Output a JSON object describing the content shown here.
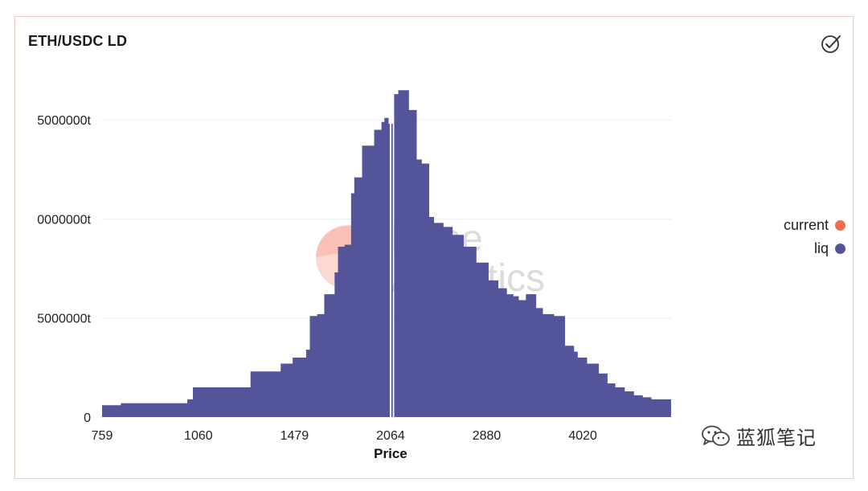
{
  "card": {
    "title": "ETH/USDC LD",
    "check_icon": "check-circle-icon"
  },
  "watermark": {
    "dune_line1": "Dune",
    "dune_line2": "Analytics",
    "wechat_text": "蓝狐笔记",
    "wechat_icon": "wechat-icon"
  },
  "chart_data": {
    "type": "area",
    "x_scale": "log",
    "xlabel": "Price",
    "ylabel": "",
    "x_ticks": [
      759,
      1060,
      1479,
      2064,
      2880,
      4020
    ],
    "y_tick_labels": [
      "0",
      "5000000t",
      "0000000t",
      "5000000t"
    ],
    "y_ticks": [
      0,
      5000000,
      10000000,
      15000000
    ],
    "xlim": [
      759,
      5460
    ],
    "ylim": [
      0,
      17200000
    ],
    "grid": true,
    "legend": "right",
    "series": [
      {
        "name": "liq",
        "color": "#54549a",
        "x": [
          759,
          780,
          810,
          920,
          1020,
          1040,
          1140,
          1270,
          1350,
          1410,
          1440,
          1470,
          1510,
          1540,
          1560,
          1600,
          1640,
          1700,
          1720,
          1760,
          1800,
          1820,
          1870,
          1950,
          2000,
          2020,
          2050,
          2080,
          2090,
          2120,
          2160,
          2200,
          2260,
          2300,
          2360,
          2400,
          2480,
          2560,
          2660,
          2780,
          2900,
          3000,
          3090,
          3160,
          3220,
          3300,
          3420,
          3500,
          3560,
          3640,
          3780,
          3900,
          3950,
          4080,
          4250,
          4380,
          4500,
          4650,
          4800,
          4950,
          5100,
          5300,
          5460
        ],
        "values": [
          600000,
          600000,
          700000,
          700000,
          900000,
          1500000,
          1500000,
          2300000,
          2300000,
          2700000,
          2700000,
          3000000,
          3000000,
          3400000,
          5100000,
          5200000,
          6200000,
          7300000,
          8600000,
          8700000,
          11300000,
          12100000,
          13700000,
          14500000,
          14900000,
          15100000,
          14800000,
          0,
          16300000,
          16500000,
          16500000,
          15500000,
          13000000,
          12800000,
          10100000,
          9800000,
          9600000,
          9200000,
          8600000,
          7800000,
          6900000,
          6500000,
          6200000,
          6100000,
          5900000,
          6200000,
          5500000,
          5200000,
          5200000,
          5100000,
          3600000,
          3300000,
          3000000,
          2700000,
          2200000,
          1700000,
          1500000,
          1300000,
          1100000,
          1000000,
          900000,
          900000,
          850000
        ]
      },
      {
        "name": "current",
        "color": "#f26b4e",
        "x": [
          2064
        ],
        "values": [
          0
        ]
      }
    ]
  }
}
